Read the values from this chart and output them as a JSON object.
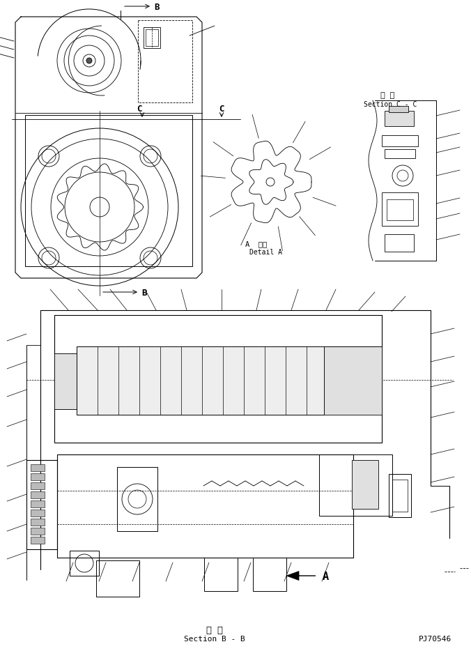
{
  "bg_color": "#ffffff",
  "line_color": "#000000",
  "fig_width": 6.76,
  "fig_height": 9.45,
  "dpi": 100,
  "label_B": "B",
  "label_C": "C",
  "detail_A_text1": "A  詳細",
  "detail_A_text2": "Detail A",
  "section_CC_text1": "断 面",
  "section_CC_text2": "Section C - C",
  "section_BB_text1": "断 面",
  "section_BB_text2": "Section B - B",
  "part_number": "PJ70546",
  "arrow_A": "A",
  "font_mono": "monospace"
}
